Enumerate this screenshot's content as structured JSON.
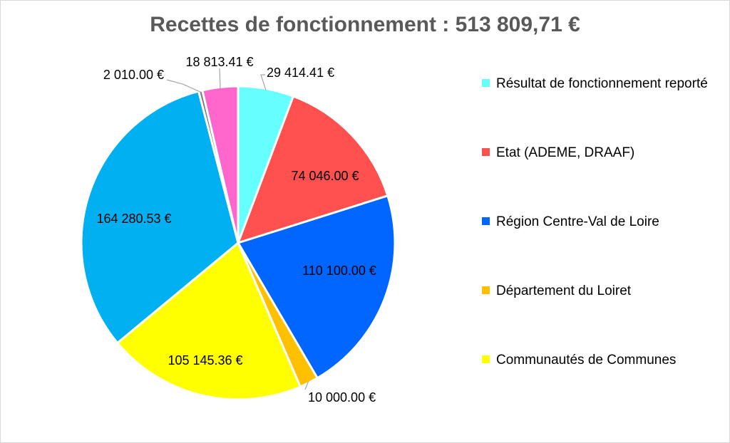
{
  "chart_data": {
    "type": "pie",
    "title": "Recettes de fonctionnement : 513 809,71 €",
    "slices": [
      {
        "name": "Résultat de fonctionnement reporté",
        "value": 29414.41,
        "label": "29 414.41 €",
        "color": "#66FFFF"
      },
      {
        "name": "Etat (ADEME, DRAAF)",
        "value": 74046.0,
        "label": "74 046.00 €",
        "color": "#FF5050"
      },
      {
        "name": "Région Centre-Val de Loire",
        "value": 110100.0,
        "label": "110 100.00 €",
        "color": "#0066FF"
      },
      {
        "name": "Département du Loiret",
        "value": 10000.0,
        "label": "10 000.00 €",
        "color": "#FFC000"
      },
      {
        "name": "Communautés de Communes",
        "value": 105145.36,
        "label": "105 145.36 €",
        "color": "#FFFF00"
      },
      {
        "name": "",
        "value": 164280.53,
        "label": "164 280.53 €",
        "color": "#00B0F0"
      },
      {
        "name": "",
        "value": 2010.0,
        "label": "2 010.00 €",
        "color": "#7F7F7F"
      },
      {
        "name": "",
        "value": 18813.41,
        "label": "18 813.41 €",
        "color": "#FF66CC"
      }
    ],
    "legend": [
      "Résultat de fonctionnement reporté",
      "Etat (ADEME, DRAAF)",
      "Région Centre-Val de Loire",
      "Département du Loiret",
      "Communautés de Communes"
    ],
    "legend_position": "right"
  }
}
